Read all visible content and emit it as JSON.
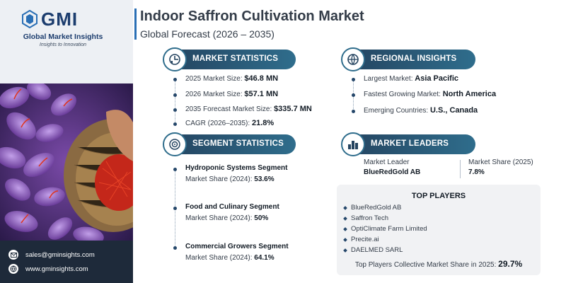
{
  "brand": {
    "logo_text": "GMI",
    "name": "Global Market Insights",
    "tagline": "Insights to Innovation"
  },
  "contact": {
    "email": "sales@gminsights.com",
    "website": "www.gminsights.com"
  },
  "header": {
    "title": "Indoor Saffron Cultivation Market",
    "subtitle": "Global Forecast (2026 – 2035)"
  },
  "market_statistics": {
    "heading": "MARKET STATISTICS",
    "items": [
      {
        "label": "2025 Market Size: ",
        "value": "$46.8 MN"
      },
      {
        "label": "2026 Market Size: ",
        "value": "$57.1 MN"
      },
      {
        "label": "2035 Forecast Market Size: ",
        "value": "$335.7 MN"
      },
      {
        "label": "CAGR (2026–2035): ",
        "value": "21.8%"
      }
    ]
  },
  "regional_insights": {
    "heading": "REGIONAL INSIGHTS",
    "items": [
      {
        "label": "Largest Market: ",
        "value": "Asia Pacific"
      },
      {
        "label": "Fastest Growing Market: ",
        "value": "North America"
      },
      {
        "label": "Emerging Countries: ",
        "value": "U.S., Canada"
      }
    ]
  },
  "segment_statistics": {
    "heading": "SEGMENT STATISTICS",
    "items": [
      {
        "title": "Hydroponic Systems Segment",
        "share_label": "Market Share (2024): ",
        "share": "53.6%"
      },
      {
        "title": "Food and Culinary Segment",
        "share_label": "Market Share (2024): ",
        "share": "50%"
      },
      {
        "title": "Commercial Growers Segment",
        "share_label": "Market Share (2024): ",
        "share": "64.1%"
      }
    ]
  },
  "market_leaders": {
    "heading": "MARKET LEADERS",
    "leader_label": "Market Leader",
    "leader_value": "BlueRedGold AB",
    "share_label": "Market Share (2025)",
    "share_value": "7.8%"
  },
  "top_players": {
    "heading": "TOP PLAYERS",
    "players": [
      "BlueRedGold AB",
      "Saffron Tech",
      "OptiClimate Farm Limited",
      "Precite.ai",
      "DAELMED SARL"
    ],
    "collective_label": "Top Players Collective Market Share in 2025: ",
    "collective_value": "29.7%"
  },
  "colors": {
    "pill_dark": "#24435f",
    "pill_light": "#2f6d8c",
    "accent_blue": "#2a6fb5",
    "contact_bg": "#1e2a3a"
  }
}
